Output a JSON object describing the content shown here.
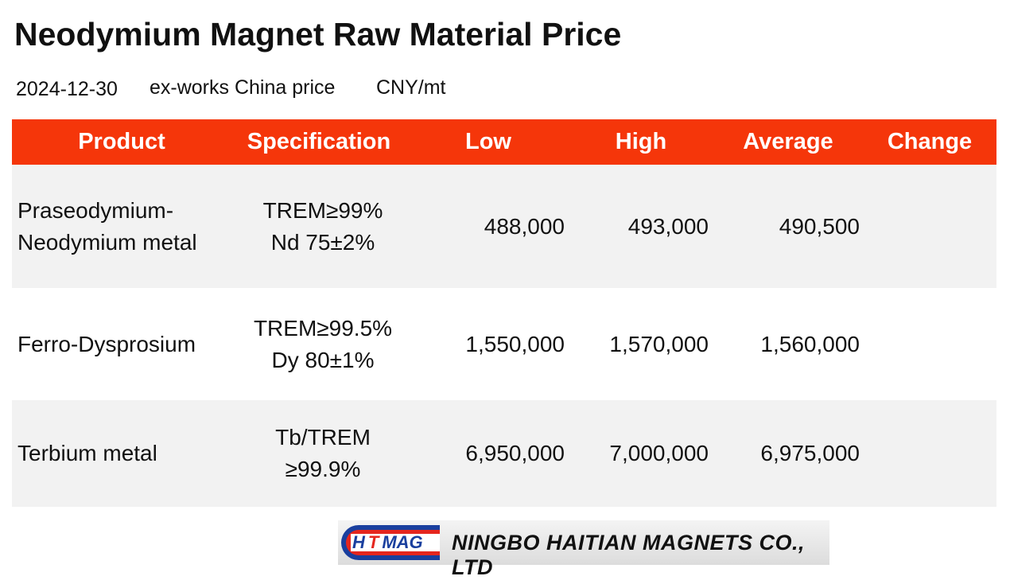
{
  "header": {
    "title": "Neodymium Magnet Raw Material Price",
    "date": "2024-12-30",
    "basis": "ex-works China price",
    "unit": "CNY/mt"
  },
  "table": {
    "columns": [
      "Product",
      "Specification",
      "Low",
      "High",
      "Average",
      "Change"
    ],
    "rows": [
      {
        "product": [
          "Praseodymium-",
          "Neodymium metal"
        ],
        "specification": [
          "TREM≥99%",
          "Nd 75±2%"
        ],
        "low": "488,000",
        "high": "493,000",
        "average": "490,500"
      },
      {
        "product": [
          "Ferro-Dysprosium"
        ],
        "specification": [
          "TREM≥99.5%",
          "Dy 80±1%"
        ],
        "low": "1,550,000",
        "high": "1,570,000",
        "average": "1,560,000"
      },
      {
        "product": [
          "Terbium metal"
        ],
        "specification": [
          "Tb/TREM",
          "≥99.9%"
        ],
        "low": "6,950,000",
        "high": "7,000,000",
        "average": "6,975,000"
      }
    ]
  },
  "logo": {
    "mark": [
      "H",
      "T",
      "MAG"
    ],
    "company": "NINGBO HAITIAN MAGNETS CO., LTD"
  }
}
